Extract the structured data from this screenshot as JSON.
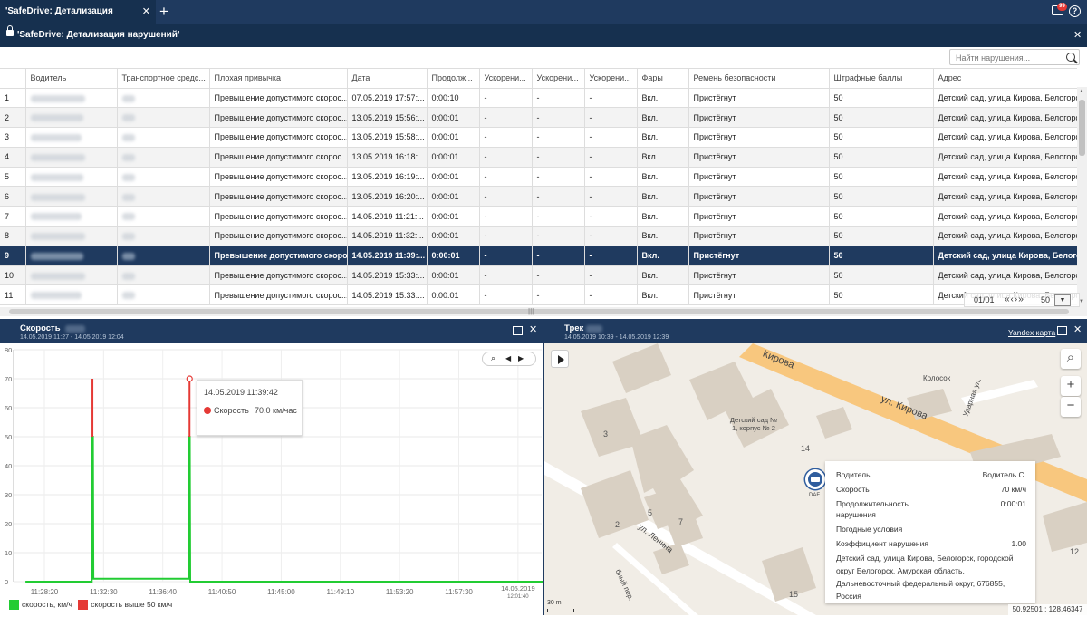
{
  "top_tab": {
    "label": "'SafeDrive: Детализация нарушений'",
    "close": "✕",
    "add": "+"
  },
  "notifications": {
    "count": "99"
  },
  "help": "?",
  "window": {
    "title": "'SafeDrive: Детализация нарушений'",
    "close": "✕"
  },
  "search": {
    "placeholder": "Найти нарушения..."
  },
  "table": {
    "headers": [
      "",
      "Водитель",
      "Транспортное средс...",
      "Плохая привычка",
      "Дата",
      "Продолж...",
      "Ускорени...",
      "Ускорени...",
      "Ускорени...",
      "Фары",
      "Ремень безопасности",
      "Штрафные баллы",
      "Адрес"
    ],
    "selected_row": 9,
    "rows": [
      [
        "1",
        "",
        "",
        "Превышение допустимого скорос...",
        "07.05.2019 17:57:...",
        "0:00:10",
        "-",
        "-",
        "-",
        "Вкл.",
        "Пристёгнут",
        "50",
        "Детский сад, улица Кирова, Белогорск, го..."
      ],
      [
        "2",
        "",
        "",
        "Превышение допустимого скорос...",
        "13.05.2019 15:56:...",
        "0:00:01",
        "-",
        "-",
        "-",
        "Вкл.",
        "Пристёгнут",
        "50",
        "Детский сад, улица Кирова, Белогорск, го..."
      ],
      [
        "3",
        "",
        "",
        "Превышение допустимого скорос...",
        "13.05.2019 15:58:...",
        "0:00:01",
        "-",
        "-",
        "-",
        "Вкл.",
        "Пристёгнут",
        "50",
        "Детский сад, улица Кирова, Белогорск, го..."
      ],
      [
        "4",
        "",
        "",
        "Превышение допустимого скорос...",
        "13.05.2019 16:18:...",
        "0:00:01",
        "-",
        "-",
        "-",
        "Вкл.",
        "Пристёгнут",
        "50",
        "Детский сад, улица Кирова, Белогорск, го..."
      ],
      [
        "5",
        "",
        "",
        "Превышение допустимого скорос...",
        "13.05.2019 16:19:...",
        "0:00:01",
        "-",
        "-",
        "-",
        "Вкл.",
        "Пристёгнут",
        "50",
        "Детский сад, улица Кирова, Белогорск, го..."
      ],
      [
        "6",
        "",
        "",
        "Превышение допустимого скорос...",
        "13.05.2019 16:20:...",
        "0:00:01",
        "-",
        "-",
        "-",
        "Вкл.",
        "Пристёгнут",
        "50",
        "Детский сад, улица Кирова, Белогорск, го..."
      ],
      [
        "7",
        "",
        "",
        "Превышение допустимого скорос...",
        "14.05.2019 11:21:...",
        "0:00:01",
        "-",
        "-",
        "-",
        "Вкл.",
        "Пристёгнут",
        "50",
        "Детский сад, улица Кирова, Белогорск, го..."
      ],
      [
        "8",
        "",
        "",
        "Превышение допустимого скорос...",
        "14.05.2019 11:32:...",
        "0:00:01",
        "-",
        "-",
        "-",
        "Вкл.",
        "Пристёгнут",
        "50",
        "Детский сад, улица Кирова, Белогорск, го..."
      ],
      [
        "9",
        "",
        "",
        "Превышение допустимого скорос...",
        "14.05.2019 11:39:...",
        "0:00:01",
        "-",
        "-",
        "-",
        "Вкл.",
        "Пристёгнут",
        "50",
        "Детский сад, улица Кирова, Белогорск, го..."
      ],
      [
        "10",
        "",
        "",
        "Превышение допустимого скорос...",
        "14.05.2019 15:33:...",
        "0:00:01",
        "-",
        "-",
        "-",
        "Вкл.",
        "Пристёгнут",
        "50",
        "Детский сад, улица Кирова, Белогорск, го..."
      ],
      [
        "11",
        "",
        "",
        "Превышение допустимого скорос...",
        "14.05.2019 15:33:...",
        "0:00:01",
        "-",
        "-",
        "-",
        "Вкл.",
        "Пристёгнут",
        "50",
        "Детский сад, улица Кирова, Белогорск, го..."
      ]
    ]
  },
  "pager": {
    "page": "01/01",
    "nav": "«‹›»",
    "size": "50"
  },
  "speed_panel": {
    "title": "Скорость",
    "period": "14.05.2019 11:27 - 14.05.2019 12:04"
  },
  "track_panel": {
    "title": "Трек",
    "period": "14.05.2019 10:39 - 14.05.2019 12:39",
    "map_link": "Yandex карта"
  },
  "chart_data": {
    "type": "line",
    "title": "",
    "xlabel": "",
    "ylabel": "",
    "ylim": [
      0,
      80
    ],
    "yticks": [
      0,
      10,
      20,
      30,
      40,
      50,
      60,
      70,
      80
    ],
    "x_ticks": [
      "11:28:20",
      "11:32:30",
      "11:36:40",
      "11:40:50",
      "11:45:00",
      "11:49:10",
      "11:53:20",
      "11:57:30"
    ],
    "x_last_tick": {
      "date": "14.05.2019",
      "time": "12:01:40"
    },
    "series": [
      {
        "name": "скорость, км/ч",
        "color": "#22cc33",
        "points": [
          [
            "11:27",
            0
          ],
          [
            "11:31:40",
            0
          ],
          [
            "11:31:42",
            50
          ],
          [
            "11:31:45",
            50
          ],
          [
            "11:31:47",
            1
          ],
          [
            "11:38:30",
            1
          ],
          [
            "11:38:32",
            50
          ],
          [
            "11:38:34",
            50
          ],
          [
            "11:38:36",
            0
          ],
          [
            "12:04",
            0
          ]
        ]
      },
      {
        "name": "скорость выше 50 км/ч",
        "color": "#e53935",
        "points": [
          [
            "11:31:43",
            50
          ],
          [
            "11:31:43",
            70
          ],
          [
            "11:38:33",
            50
          ],
          [
            "11:38:33",
            70
          ]
        ]
      }
    ],
    "tooltip": {
      "time": "14.05.2019  11:39:42",
      "label": "Скорость",
      "value": "70.0 км/час"
    }
  },
  "chart_tools": {
    "zoom": "⌕",
    "prev": "◀",
    "next": "▶"
  },
  "map": {
    "labels": {
      "street_kirova_1": "ул. Кирова",
      "street_kirova_2": "Кирова",
      "street_lenina": "ул. Ленина",
      "street_udarnaya": "Ударная ул.",
      "lane": "бный пер.",
      "kindergarten": "Детский сад №\n1, корпус № 2",
      "kolosok": "Колосок",
      "car": "DAF",
      "house_3": "3",
      "house_2": "2",
      "house_5": "5",
      "house_7": "7",
      "house_14": "14",
      "house_12": "12",
      "house_15": "15"
    },
    "scale": "30 m",
    "coords": "50.92501 : 128.46347"
  },
  "info_box": {
    "driver_label": "Водитель",
    "driver_value": "Водитель С.",
    "speed_label": "Скорость",
    "speed_value": "70 км/ч",
    "duration_label": "Продолжительность нарушения",
    "duration_value": "0:00:01",
    "weather_label": "Погодные условия",
    "coef_label": "Коэффициент нарушения",
    "coef_value": "1.00",
    "address": "Детский сад, улица Кирова, Белогорск, городской округ Белогорск, Амурская область, Дальневосточный федеральный округ, 676855, Россия"
  },
  "chart_legend": {
    "speed": "скорость, км/ч",
    "over": "скорость выше 50 км/ч"
  }
}
